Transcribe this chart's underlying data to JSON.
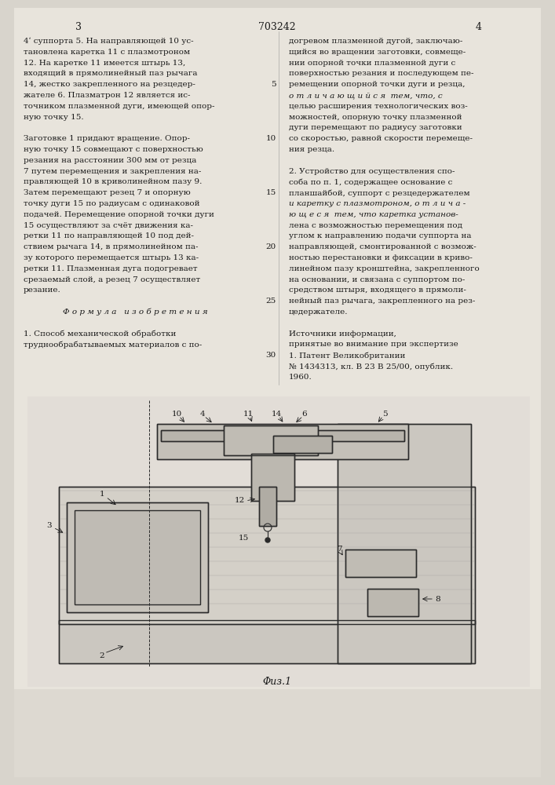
{
  "background_color": "#d8d4cc",
  "page_color": "#e8e4dc",
  "text_color": "#1a1a1a",
  "header": {
    "left_page_num": "3",
    "center_patent_num": "703242",
    "right_page_num": "4"
  },
  "left_column": [
    "4ʹ суппорта 5. На направляющей 10 ус‑",
    "тановлена каретка 11 с плазмотроном",
    "12. На каретке 11 имеется штырь 13,",
    "входящий в прямолинейный паз рычага",
    "14, жестко закрепленного на резцедер‑",
    "жателе 6. Плазматрон 12 является ис‑",
    "точником плазменной дуги, имеющей опор‑",
    "ную точку 15.",
    "",
    "Заготовке 1 придают вращение. Опор‑",
    "ную точку 15 совмещают с поверхностью",
    "резания на расстоянии 300 мм от резца",
    "7 путем перемещения и закрепления на‑",
    "правляющей 10 в криволинейном пазу 9.",
    "Затем перемещают резец 7 и опорную",
    "точку дуги 15 по радиусам с одинаковой",
    "подачей. Перемещение опорной точки дуги",
    "15 осуществляют за счёт движения ка‑",
    "ретки 11 по направляющей 10 под дей‑",
    "ствием рычага 14, в прямолинейном па‑",
    "зу которого перемещается штырь 13 ка‑",
    "ретки 11. Плазменная дуга подогревает",
    "срезаемый слой, а резец 7 осуществляет",
    "резание.",
    "",
    "Ф о р м у л а   и з о б р е т е н и я",
    "",
    "1. Способ механической обработки",
    "труднообрабатываемых материалов с по‑"
  ],
  "right_column": [
    "догревом плазменной дугой, заключаю‑",
    "щийся во вращении заготовки, совмеще‑",
    "нии опорной точки плазменной дуги с",
    "поверхностью резания и последующем пе‑",
    "ремещении опорной точки дуги и резца,",
    "о т л и ч а ю щ и й с я  тем, что, с",
    "целью расширения технологических воз‑",
    "можностей, опорную точку плазменной",
    "дуги перемещают по радиусу заготовки",
    "со скоростью, равной скорости перемеще‑",
    "ния резца.",
    "",
    "2. Устройство для осуществления спо‑",
    "соба по п. 1, содержащее основание с",
    "планшайбой, суппорт с резцедержателем",
    "и каретку с плазмотроном, о т л и ч а ‑",
    "ю щ е с я  тем, что каретка установ‑",
    "лена с возможностью перемещения под",
    "углом к направлению подачи суппорта на",
    "направляющей, смонтированной с возмож‑",
    "ностью перестановки и фиксации в криво‑",
    "линейном пазу кронштейна, закрепленного",
    "на основании, и связана с суппортом по‑",
    "средством штыря, входящего в прямоли‑",
    "нейный паз рычага, закрепленного на рез‑",
    "цедержателе.",
    "",
    "Источники информации,",
    "принятые во внимание при экспертизе",
    "1. Патент Великобритании",
    "№ 1434313, кл. B 23 B 25/00, опублик.",
    "1960."
  ],
  "line_numbers": [
    5,
    10,
    15,
    20,
    25,
    30
  ],
  "figure_caption": "Φиз.1"
}
